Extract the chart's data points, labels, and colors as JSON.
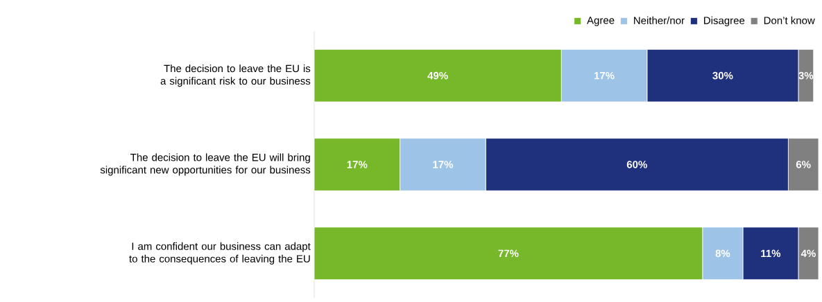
{
  "chart_data": {
    "type": "bar",
    "orientation": "horizontal",
    "stacked": true,
    "categories": [
      "The decision to leave the EU is a significant risk to our business",
      "The decision to leave the EU will bring significant new opportunities for our business",
      "I am confident our business can adapt to the consequences of leaving the EU"
    ],
    "tick_labels": "y",
    "legend": "top right",
    "series": [
      {
        "name": "Agree",
        "color": "#76b82a",
        "values": [
          49,
          17,
          77
        ],
        "value_labels": [
          "49%",
          "17%",
          "77%"
        ]
      },
      {
        "name": "Neither/nor",
        "color": "#9dc3e6",
        "values": [
          17,
          17,
          8
        ],
        "value_labels": [
          "17%",
          "17%",
          "8%"
        ]
      },
      {
        "name": "Disagree",
        "color": "#1f317d",
        "values": [
          30,
          60,
          11
        ],
        "value_labels": [
          "30%",
          "60%",
          "11%"
        ]
      },
      {
        "name": "Don’t know",
        "color": "#808080",
        "values": [
          3,
          6,
          4
        ],
        "value_labels": [
          "3%",
          "6%",
          "4%"
        ]
      }
    ]
  }
}
